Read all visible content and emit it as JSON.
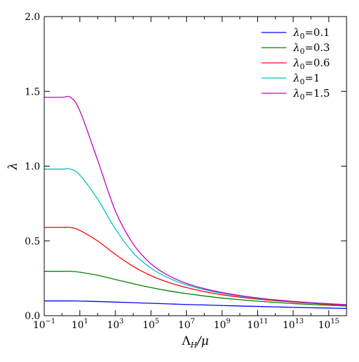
{
  "chart_data": {
    "type": "line",
    "xscale": "log",
    "xlim": [
      0.1,
      1e+16
    ],
    "ylim": [
      0,
      2.0
    ],
    "xlabel": "Λ_H/μ",
    "xlabel_main": "Λ",
    "xlabel_sub": "H",
    "xlabel_tail": "/μ",
    "ylabel": "λ",
    "grid": false,
    "legend_position": "top-right",
    "x_ticks": [
      {
        "value": 0.1,
        "base": "10",
        "exp": "−1"
      },
      {
        "value": 10,
        "base": "10",
        "exp": "1"
      },
      {
        "value": 1000,
        "base": "10",
        "exp": "3"
      },
      {
        "value": 100000,
        "base": "10",
        "exp": "5"
      },
      {
        "value": 10000000,
        "base": "10",
        "exp": "7"
      },
      {
        "value": 1000000000,
        "base": "10",
        "exp": "9"
      },
      {
        "value": 100000000000,
        "base": "10",
        "exp": "11"
      },
      {
        "value": 10000000000000,
        "base": "10",
        "exp": "13"
      },
      {
        "value": 1000000000000000,
        "base": "10",
        "exp": "15"
      }
    ],
    "y_ticks": [
      {
        "value": 0.0,
        "label": "0.0"
      },
      {
        "value": 0.5,
        "label": "0.5"
      },
      {
        "value": 1.0,
        "label": "1.0"
      },
      {
        "value": 1.5,
        "label": "1.5"
      },
      {
        "value": 2.0,
        "label": "2.0"
      }
    ],
    "x": [
      0.1,
      1,
      3,
      10,
      100,
      1000,
      10000,
      100000,
      1000000,
      10000000,
      100000000,
      1000000000,
      10000000000,
      100000000000,
      1000000000000,
      10000000000000,
      100000000000000,
      1000000000000000,
      10000000000000000
    ],
    "series": [
      {
        "label_main": "λ",
        "label_sub": "0",
        "label_value": "=0.1",
        "color": "#0000ff",
        "values": [
          0.099,
          0.099,
          0.099,
          0.098,
          0.095,
          0.091,
          0.087,
          0.083,
          0.079,
          0.075,
          0.072,
          0.068,
          0.065,
          0.062,
          0.059,
          0.056,
          0.053,
          0.051,
          0.049
        ]
      },
      {
        "label_main": "λ",
        "label_sub": "0",
        "label_value": "=0.3",
        "color": "#008000",
        "values": [
          0.297,
          0.297,
          0.297,
          0.291,
          0.27,
          0.242,
          0.214,
          0.188,
          0.166,
          0.148,
          0.132,
          0.118,
          0.107,
          0.097,
          0.089,
          0.081,
          0.075,
          0.07,
          0.065
        ]
      },
      {
        "label_main": "λ",
        "label_sub": "0",
        "label_value": "=0.6",
        "color": "#ff0000",
        "values": [
          0.59,
          0.59,
          0.59,
          0.57,
          0.5,
          0.41,
          0.33,
          0.268,
          0.222,
          0.188,
          0.161,
          0.14,
          0.124,
          0.111,
          0.1,
          0.091,
          0.083,
          0.076,
          0.071
        ]
      },
      {
        "label_main": "λ",
        "label_sub": "0",
        "label_value": "=1",
        "color": "#00bfbf",
        "values": [
          0.98,
          0.98,
          0.98,
          0.94,
          0.78,
          0.58,
          0.42,
          0.318,
          0.252,
          0.206,
          0.174,
          0.15,
          0.131,
          0.116,
          0.104,
          0.094,
          0.086,
          0.079,
          0.073
        ]
      },
      {
        "label_main": "λ",
        "label_sub": "0",
        "label_value": "=1.5",
        "color": "#bf00bf",
        "values": [
          1.46,
          1.46,
          1.46,
          1.37,
          1.04,
          0.7,
          0.48,
          0.347,
          0.268,
          0.216,
          0.181,
          0.155,
          0.135,
          0.119,
          0.106,
          0.096,
          0.087,
          0.08,
          0.074
        ]
      }
    ]
  }
}
